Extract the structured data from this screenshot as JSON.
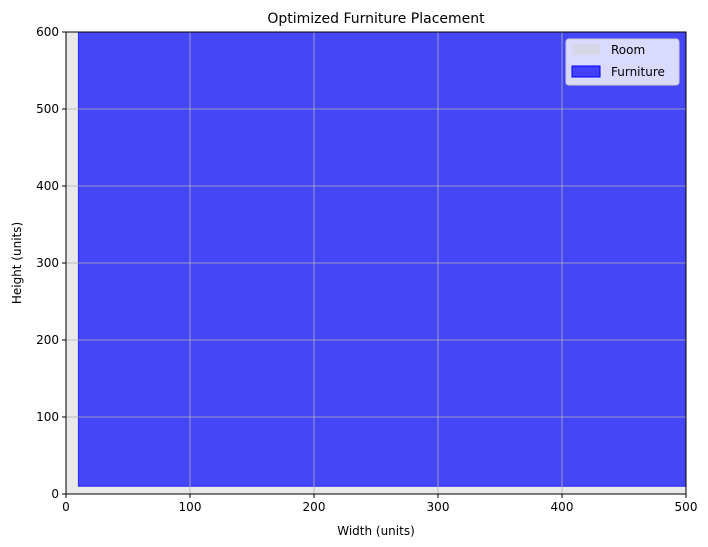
{
  "chart_data": {
    "type": "area",
    "title": "Optimized Furniture Placement",
    "xlabel": "Width (units)",
    "ylabel": "Height (units)",
    "xlim": [
      0,
      500
    ],
    "ylim": [
      0,
      600
    ],
    "xticks": [
      0,
      100,
      200,
      300,
      400,
      500
    ],
    "yticks": [
      0,
      100,
      200,
      300,
      400,
      500,
      600
    ],
    "grid": true,
    "legend_position": "top-right",
    "series": [
      {
        "name": "Room",
        "color": "#d3d3d3",
        "opacity": 0.5,
        "rect": {
          "x0": 0,
          "y0": 0,
          "x1": 500,
          "y1": 600
        }
      },
      {
        "name": "Furniture",
        "color": "#0000ff",
        "opacity": 0.7,
        "rect": {
          "x0": 10,
          "y0": 10,
          "x1": 500,
          "y1": 600
        }
      }
    ]
  }
}
